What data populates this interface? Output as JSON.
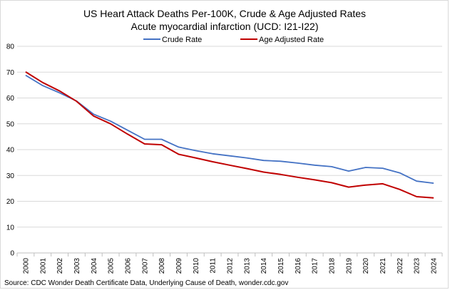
{
  "chart_data": {
    "type": "line",
    "title": "US Heart Attack Deaths Per-100K, Crude & Age Adjusted Rates",
    "subtitle": "Acute myocardial infarction (UCD: I21-I22)",
    "source": "Source: CDC Wonder Death Certificate Data, Underlying Cause of Death, wonder.cdc.gov",
    "x": [
      "2000",
      "2001",
      "2002",
      "2003",
      "2004",
      "2005",
      "2006",
      "2007",
      "2008",
      "2009",
      "2010",
      "2011",
      "2012",
      "2013",
      "2014",
      "2015",
      "2016",
      "2017",
      "2018",
      "2019",
      "2020",
      "2021",
      "2022",
      "2023",
      "2024"
    ],
    "ylim": [
      0,
      80
    ],
    "yticks": [
      0,
      10,
      20,
      30,
      40,
      50,
      60,
      70,
      80
    ],
    "grid": true,
    "legend_position": "top",
    "series": [
      {
        "name": "Crude Rate",
        "color": "#4472c4",
        "values": [
          68.8,
          64.8,
          62.0,
          58.8,
          53.7,
          51.0,
          47.5,
          44.0,
          44.0,
          41.0,
          39.6,
          38.4,
          37.6,
          36.8,
          35.8,
          35.5,
          34.8,
          34.0,
          33.4,
          31.7,
          33.1,
          32.8,
          31.0,
          27.8,
          27.0
        ]
      },
      {
        "name": "Age Adjusted Rate",
        "color": "#c00000",
        "values": [
          70.1,
          66.0,
          62.7,
          58.7,
          53.0,
          50.0,
          46.0,
          42.2,
          41.9,
          38.2,
          36.8,
          35.3,
          34.0,
          32.7,
          31.3,
          30.4,
          29.3,
          28.3,
          27.2,
          25.5,
          26.3,
          26.8,
          24.6,
          21.8,
          21.3
        ]
      }
    ]
  }
}
